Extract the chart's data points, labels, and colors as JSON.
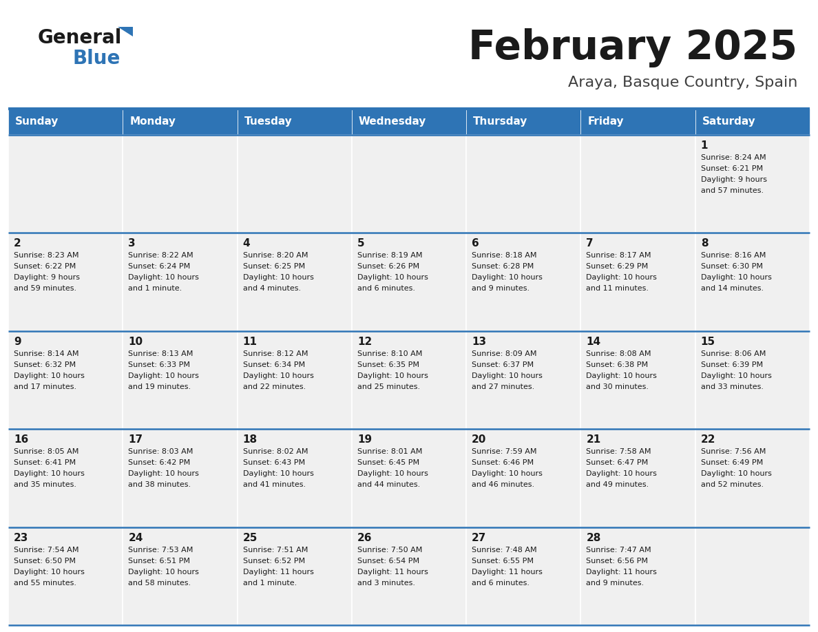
{
  "title": "February 2025",
  "subtitle": "Araya, Basque Country, Spain",
  "header_color": "#2E74B5",
  "header_text_color": "#FFFFFF",
  "cell_bg_color": "#F0F0F0",
  "border_color": "#2E74B5",
  "text_color": "#1A1A1A",
  "days_of_week": [
    "Sunday",
    "Monday",
    "Tuesday",
    "Wednesday",
    "Thursday",
    "Friday",
    "Saturday"
  ],
  "calendar_data": [
    [
      {
        "day": null,
        "sunrise": null,
        "sunset": null,
        "daylight": null
      },
      {
        "day": null,
        "sunrise": null,
        "sunset": null,
        "daylight": null
      },
      {
        "day": null,
        "sunrise": null,
        "sunset": null,
        "daylight": null
      },
      {
        "day": null,
        "sunrise": null,
        "sunset": null,
        "daylight": null
      },
      {
        "day": null,
        "sunrise": null,
        "sunset": null,
        "daylight": null
      },
      {
        "day": null,
        "sunrise": null,
        "sunset": null,
        "daylight": null
      },
      {
        "day": 1,
        "sunrise": "8:24 AM",
        "sunset": "6:21 PM",
        "daylight": "9 hours\nand 57 minutes."
      }
    ],
    [
      {
        "day": 2,
        "sunrise": "8:23 AM",
        "sunset": "6:22 PM",
        "daylight": "9 hours\nand 59 minutes."
      },
      {
        "day": 3,
        "sunrise": "8:22 AM",
        "sunset": "6:24 PM",
        "daylight": "10 hours\nand 1 minute."
      },
      {
        "day": 4,
        "sunrise": "8:20 AM",
        "sunset": "6:25 PM",
        "daylight": "10 hours\nand 4 minutes."
      },
      {
        "day": 5,
        "sunrise": "8:19 AM",
        "sunset": "6:26 PM",
        "daylight": "10 hours\nand 6 minutes."
      },
      {
        "day": 6,
        "sunrise": "8:18 AM",
        "sunset": "6:28 PM",
        "daylight": "10 hours\nand 9 minutes."
      },
      {
        "day": 7,
        "sunrise": "8:17 AM",
        "sunset": "6:29 PM",
        "daylight": "10 hours\nand 11 minutes."
      },
      {
        "day": 8,
        "sunrise": "8:16 AM",
        "sunset": "6:30 PM",
        "daylight": "10 hours\nand 14 minutes."
      }
    ],
    [
      {
        "day": 9,
        "sunrise": "8:14 AM",
        "sunset": "6:32 PM",
        "daylight": "10 hours\nand 17 minutes."
      },
      {
        "day": 10,
        "sunrise": "8:13 AM",
        "sunset": "6:33 PM",
        "daylight": "10 hours\nand 19 minutes."
      },
      {
        "day": 11,
        "sunrise": "8:12 AM",
        "sunset": "6:34 PM",
        "daylight": "10 hours\nand 22 minutes."
      },
      {
        "day": 12,
        "sunrise": "8:10 AM",
        "sunset": "6:35 PM",
        "daylight": "10 hours\nand 25 minutes."
      },
      {
        "day": 13,
        "sunrise": "8:09 AM",
        "sunset": "6:37 PM",
        "daylight": "10 hours\nand 27 minutes."
      },
      {
        "day": 14,
        "sunrise": "8:08 AM",
        "sunset": "6:38 PM",
        "daylight": "10 hours\nand 30 minutes."
      },
      {
        "day": 15,
        "sunrise": "8:06 AM",
        "sunset": "6:39 PM",
        "daylight": "10 hours\nand 33 minutes."
      }
    ],
    [
      {
        "day": 16,
        "sunrise": "8:05 AM",
        "sunset": "6:41 PM",
        "daylight": "10 hours\nand 35 minutes."
      },
      {
        "day": 17,
        "sunrise": "8:03 AM",
        "sunset": "6:42 PM",
        "daylight": "10 hours\nand 38 minutes."
      },
      {
        "day": 18,
        "sunrise": "8:02 AM",
        "sunset": "6:43 PM",
        "daylight": "10 hours\nand 41 minutes."
      },
      {
        "day": 19,
        "sunrise": "8:01 AM",
        "sunset": "6:45 PM",
        "daylight": "10 hours\nand 44 minutes."
      },
      {
        "day": 20,
        "sunrise": "7:59 AM",
        "sunset": "6:46 PM",
        "daylight": "10 hours\nand 46 minutes."
      },
      {
        "day": 21,
        "sunrise": "7:58 AM",
        "sunset": "6:47 PM",
        "daylight": "10 hours\nand 49 minutes."
      },
      {
        "day": 22,
        "sunrise": "7:56 AM",
        "sunset": "6:49 PM",
        "daylight": "10 hours\nand 52 minutes."
      }
    ],
    [
      {
        "day": 23,
        "sunrise": "7:54 AM",
        "sunset": "6:50 PM",
        "daylight": "10 hours\nand 55 minutes."
      },
      {
        "day": 24,
        "sunrise": "7:53 AM",
        "sunset": "6:51 PM",
        "daylight": "10 hours\nand 58 minutes."
      },
      {
        "day": 25,
        "sunrise": "7:51 AM",
        "sunset": "6:52 PM",
        "daylight": "11 hours\nand 1 minute."
      },
      {
        "day": 26,
        "sunrise": "7:50 AM",
        "sunset": "6:54 PM",
        "daylight": "11 hours\nand 3 minutes."
      },
      {
        "day": 27,
        "sunrise": "7:48 AM",
        "sunset": "6:55 PM",
        "daylight": "11 hours\nand 6 minutes."
      },
      {
        "day": 28,
        "sunrise": "7:47 AM",
        "sunset": "6:56 PM",
        "daylight": "11 hours\nand 9 minutes."
      },
      {
        "day": null,
        "sunrise": null,
        "sunset": null,
        "daylight": null
      }
    ]
  ],
  "logo_general_color": "#1A1A1A",
  "logo_blue_color": "#2E74B5",
  "logo_triangle_color": "#2E74B5",
  "title_fontsize": 42,
  "subtitle_fontsize": 16,
  "header_fontsize": 11,
  "day_num_fontsize": 11,
  "cell_text_fontsize": 8
}
